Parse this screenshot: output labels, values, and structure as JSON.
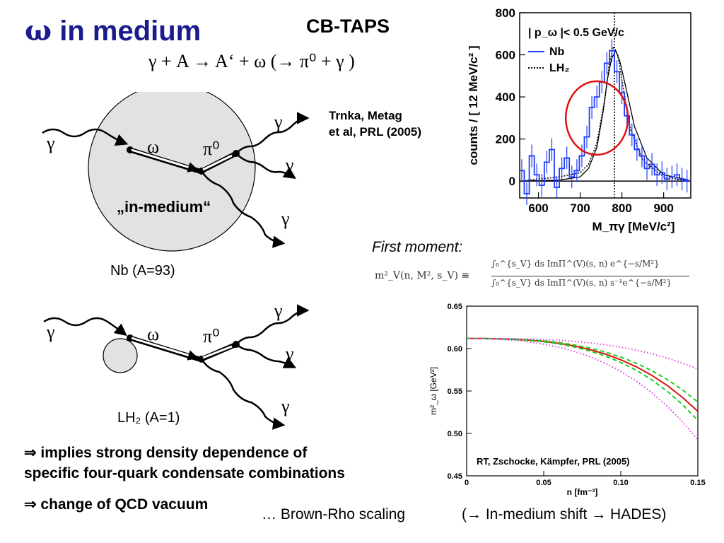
{
  "title": {
    "symbol": "ω",
    "text": "in medium"
  },
  "experiment": "CB-TAPS",
  "reaction": "γ + A → A‘ + ω (→ π⁰ + γ )",
  "reference_top": [
    "Trnka, Metag",
    "et al, PRL (2005)"
  ],
  "diagram_nb": {
    "gamma_in": "γ",
    "omega": "ω",
    "pi0": "π⁰",
    "gamma_out": [
      "γ",
      "γ",
      "γ"
    ],
    "medium_label": "„in-medium“",
    "caption": "Nb (A=93)"
  },
  "diagram_lh2": {
    "gamma_in": "γ",
    "omega": "ω",
    "pi0": "π⁰",
    "gamma_out": [
      "γ",
      "γ",
      "γ"
    ],
    "caption": "LH₂ (A=1)"
  },
  "first_moment_label": "First moment:",
  "formula": {
    "lhs": "m²_V(n, M², s_V) ≡",
    "numerator": "∫₀^{s_V} ds ImΠ^(V)(s, n) e^{−s/M²}",
    "denominator": "∫₀^{s_V} ds ImΠ^(V)(s, n) s⁻¹e^{−s/M²}"
  },
  "conclusions": [
    "⇒ implies strong density dependence of",
    "specific four-quark condensate combinations",
    "⇒ change of QCD vacuum"
  ],
  "footer": {
    "brown_rho": "… Brown-Rho scaling",
    "hades": "(→ In-medium shift → HADES)"
  },
  "colors": {
    "title": "#1b1a8e",
    "nb": "#1e3cff",
    "fit_circle": "#e01010",
    "central": "#dd1111",
    "band": "#22cc22",
    "dotted": "#e040e0"
  },
  "chart_data": [
    {
      "type": "line",
      "title": "",
      "legend": {
        "header": "| p_ω |< 0.5 GeV/c",
        "entries": [
          "Nb",
          "LH₂"
        ],
        "position": "top-left"
      },
      "xlabel": "M_πγ [MeV/c²]",
      "ylabel": "counts / [ 12 MeV/c² ]",
      "xlim": [
        555,
        965
      ],
      "ylim": [
        -80,
        800
      ],
      "xticks": [
        600,
        700,
        800,
        900
      ],
      "yticks": [
        0,
        200,
        400,
        600,
        800
      ],
      "marker_line_x": 782,
      "series": [
        {
          "name": "Nb",
          "style": "step",
          "x": [
            560,
            572,
            584,
            596,
            608,
            620,
            632,
            644,
            656,
            668,
            680,
            692,
            704,
            716,
            728,
            740,
            752,
            764,
            776,
            788,
            800,
            812,
            824,
            836,
            848,
            860,
            872,
            884,
            896,
            908,
            920,
            932,
            944,
            956
          ],
          "values": [
            50,
            -60,
            120,
            30,
            -20,
            90,
            150,
            -30,
            60,
            110,
            20,
            50,
            120,
            210,
            350,
            400,
            470,
            560,
            620,
            520,
            420,
            310,
            220,
            150,
            120,
            60,
            80,
            30,
            40,
            10,
            20,
            30,
            10,
            0
          ]
        },
        {
          "name": "LH₂",
          "style": "dotted",
          "x": [
            560,
            600,
            650,
            700,
            720,
            740,
            760,
            770,
            780,
            790,
            800,
            820,
            850,
            900,
            960
          ],
          "values": [
            0,
            10,
            20,
            40,
            80,
            180,
            400,
            560,
            640,
            600,
            480,
            250,
            100,
            20,
            0
          ]
        },
        {
          "name": "",
          "style": "solid",
          "x": [
            560,
            650,
            700,
            720,
            740,
            755,
            765,
            775,
            785,
            795,
            810,
            830,
            860,
            900,
            960
          ],
          "values": [
            0,
            5,
            20,
            60,
            160,
            330,
            480,
            580,
            620,
            570,
            440,
            260,
            110,
            30,
            5
          ]
        }
      ]
    },
    {
      "type": "line",
      "title": "",
      "annotation": "RT, Zschocke, Kämpfer, PRL (2005)",
      "xlabel": "n [fm⁻³]",
      "ylabel": "m²_ω [GeV²]",
      "xlim": [
        0,
        0.15
      ],
      "ylim": [
        0.45,
        0.65
      ],
      "xticks": [
        "0",
        "0.05",
        "0.10",
        "0.15"
      ],
      "yticks": [
        "0.45",
        "0.50",
        "0.55",
        "0.60",
        "0.65"
      ],
      "x": [
        0,
        0.01,
        0.02,
        0.03,
        0.04,
        0.05,
        0.06,
        0.07,
        0.08,
        0.09,
        0.1,
        0.11,
        0.12,
        0.13,
        0.14,
        0.15
      ],
      "series": [
        {
          "name": "",
          "style": "solid-red",
          "values": [
            0.612,
            0.6119,
            0.6115,
            0.611,
            0.61,
            0.6085,
            0.6062,
            0.603,
            0.5988,
            0.5935,
            0.5868,
            0.5786,
            0.5686,
            0.5567,
            0.5425,
            0.526
          ]
        },
        {
          "name": "",
          "style": "dashed-green-upper",
          "values": [
            0.612,
            0.6119,
            0.6116,
            0.6112,
            0.6104,
            0.6091,
            0.6071,
            0.6043,
            0.6006,
            0.5959,
            0.59,
            0.5828,
            0.5741,
            0.5637,
            0.5514,
            0.537
          ]
        },
        {
          "name": "",
          "style": "dashed-green-lower",
          "values": [
            0.612,
            0.6118,
            0.6114,
            0.6107,
            0.6096,
            0.6079,
            0.6054,
            0.6018,
            0.5971,
            0.5912,
            0.5837,
            0.5745,
            0.5633,
            0.5499,
            0.534,
            0.5155
          ]
        },
        {
          "name": "",
          "style": "dotted-magenta-upper",
          "values": [
            0.612,
            0.612,
            0.6118,
            0.6116,
            0.6112,
            0.6106,
            0.6097,
            0.6084,
            0.6067,
            0.6045,
            0.6017,
            0.5982,
            0.594,
            0.5889,
            0.5828,
            0.576
          ]
        },
        {
          "name": "",
          "style": "dotted-magenta-lower",
          "values": [
            0.612,
            0.6117,
            0.611,
            0.6098,
            0.6079,
            0.6052,
            0.6015,
            0.5966,
            0.5904,
            0.5826,
            0.5731,
            0.5617,
            0.5481,
            0.5322,
            0.5137,
            0.4925
          ]
        }
      ]
    }
  ]
}
